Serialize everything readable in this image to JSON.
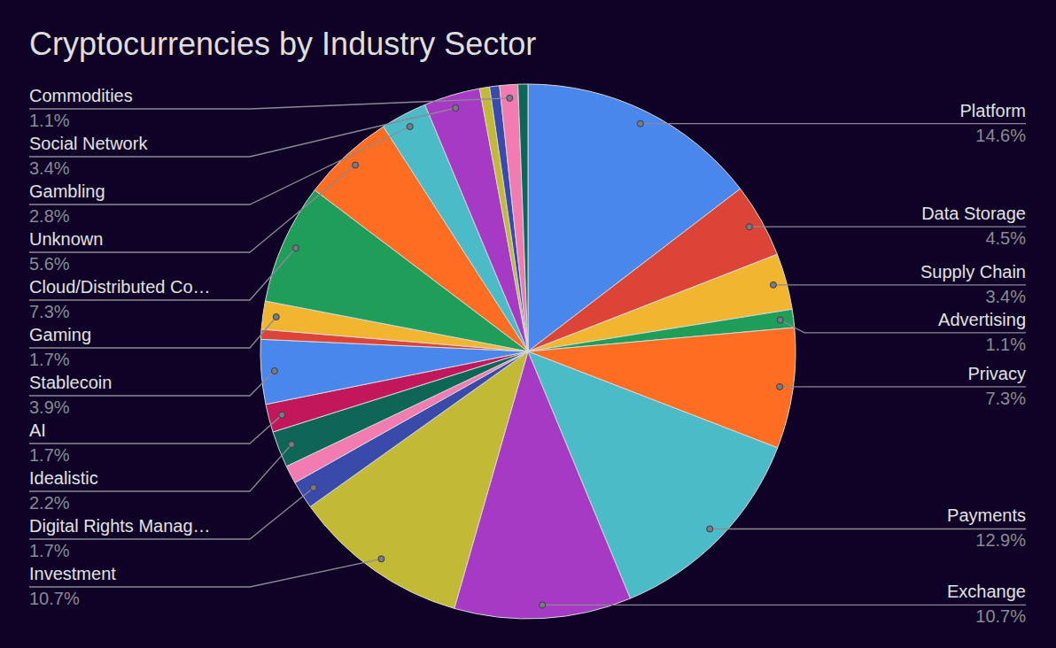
{
  "chart_data": {
    "type": "pie",
    "title": "Cryptocurrencies by Industry Sector",
    "categories": [
      "Platform",
      "Data Storage",
      "Supply Chain",
      "Advertising",
      "Privacy",
      "Payments",
      "Exchange",
      "Investment",
      "Digital Rights Manag…",
      null,
      "Idealistic",
      "AI",
      "Stablecoin",
      null,
      "Gaming",
      "Cloud/Distributed Co…",
      "Unknown",
      "Gambling",
      "Social Network",
      null,
      null,
      "Commodities",
      null
    ],
    "values": [
      14.6,
      4.5,
      3.4,
      1.1,
      7.3,
      12.9,
      10.7,
      10.7,
      1.7,
      1.1,
      2.2,
      1.7,
      3.9,
      0.6,
      1.7,
      7.3,
      5.6,
      2.8,
      3.4,
      0.6,
      0.6,
      1.1,
      0.6
    ],
    "value_labels": [
      "14.6%",
      "4.5%",
      "3.4%",
      "1.1%",
      "7.3%",
      "12.9%",
      "10.7%",
      "10.7%",
      "1.7%",
      null,
      "2.2%",
      "1.7%",
      "3.9%",
      null,
      "1.7%",
      "7.3%",
      "5.6%",
      "2.8%",
      "3.4%",
      null,
      null,
      "1.1%",
      null
    ],
    "colors": [
      "#4a87ec",
      "#db4437",
      "#f2b52f",
      "#1f9e5a",
      "#ff6d22",
      "#4bbcc7",
      "#a63ac4",
      "#c2b935",
      "#3a4aab",
      "#f27cb2",
      "#0e6656",
      "#c2185b",
      "#4a87ec",
      "#db4437",
      "#f2b52f",
      "#1f9e5a",
      "#ff6d22",
      "#4bbcc7",
      "#a63ac4",
      "#c2b935",
      "#3a4aab",
      "#f27cb2",
      "#0e6656"
    ],
    "data_labels": true
  }
}
